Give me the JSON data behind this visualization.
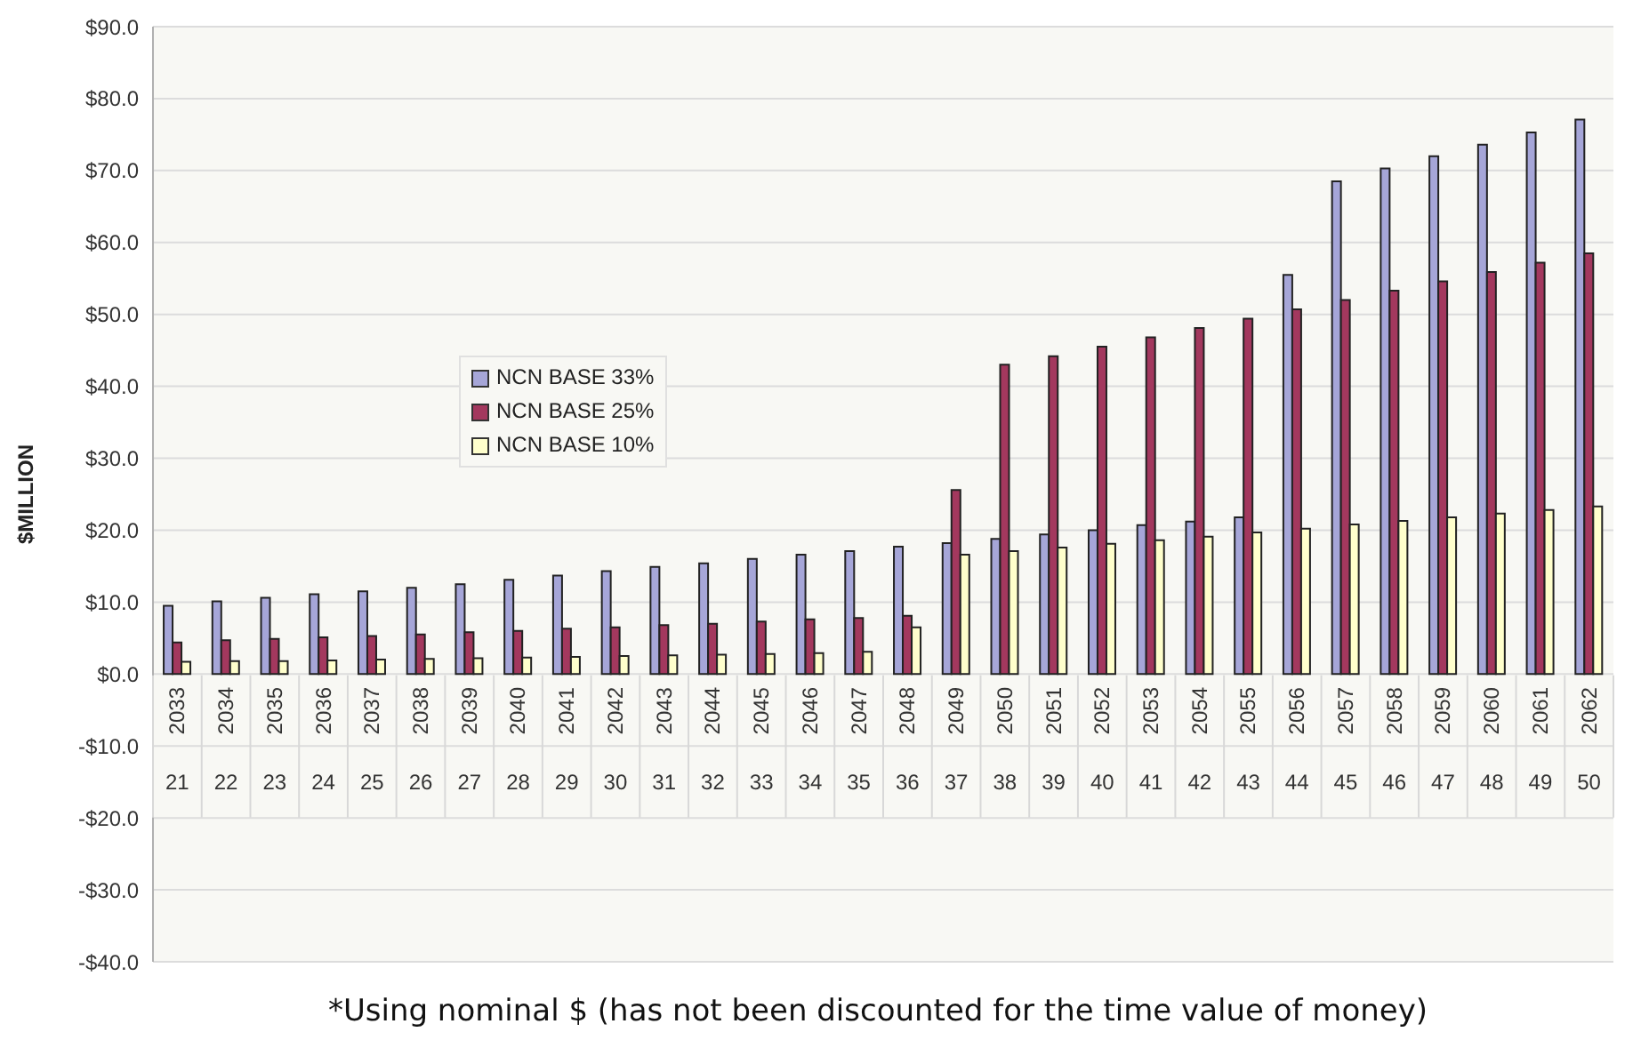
{
  "chart_data": {
    "type": "bar",
    "ylabel": "$MILLION",
    "categories": [
      "2033",
      "2034",
      "2035",
      "2036",
      "2037",
      "2038",
      "2039",
      "2040",
      "2041",
      "2042",
      "2043",
      "2044",
      "2045",
      "2046",
      "2047",
      "2048",
      "2049",
      "2050",
      "2051",
      "2052",
      "2053",
      "2054",
      "2055",
      "2056",
      "2057",
      "2058",
      "2059",
      "2060",
      "2061",
      "2062"
    ],
    "series": [
      {
        "name": "NCN BASE 33%",
        "color": "#a6a6d8",
        "values": [
          9.5,
          10.1,
          10.6,
          11.1,
          11.5,
          12.0,
          12.5,
          13.1,
          13.7,
          14.3,
          14.9,
          15.4,
          16.0,
          16.6,
          17.1,
          17.7,
          18.2,
          18.8,
          19.4,
          20.0,
          20.7,
          21.2,
          21.8,
          55.5,
          68.5,
          70.3,
          72.0,
          73.6,
          75.3,
          77.1
        ]
      },
      {
        "name": "NCN BASE 25%",
        "color": "#a3385e",
        "values": [
          4.4,
          4.7,
          4.9,
          5.1,
          5.3,
          5.5,
          5.8,
          6.0,
          6.3,
          6.5,
          6.8,
          7.0,
          7.3,
          7.6,
          7.8,
          8.1,
          25.6,
          43.0,
          44.2,
          45.5,
          46.8,
          48.1,
          49.4,
          50.7,
          52.0,
          53.3,
          54.6,
          55.9,
          57.2,
          58.5
        ]
      },
      {
        "name": "NCN BASE 10%",
        "color": "#ffffcc",
        "values": [
          1.7,
          1.8,
          1.8,
          1.9,
          2.0,
          2.1,
          2.2,
          2.3,
          2.4,
          2.5,
          2.6,
          2.7,
          2.8,
          2.9,
          3.1,
          6.5,
          16.6,
          17.1,
          17.6,
          18.1,
          18.6,
          19.1,
          19.7,
          20.2,
          20.8,
          21.3,
          21.8,
          22.3,
          22.8,
          23.3
        ]
      }
    ],
    "ylim": [
      -40,
      90
    ],
    "yticks": [
      {
        "value": -40,
        "label": "-$40.0"
      },
      {
        "value": -30,
        "label": "-$30.0"
      },
      {
        "value": -20,
        "label": "-$20.0"
      },
      {
        "value": -10,
        "label": "-$10.0"
      },
      {
        "value": 0,
        "label": "$0.0"
      },
      {
        "value": 10,
        "label": "$10.0"
      },
      {
        "value": 20,
        "label": "$20.0"
      },
      {
        "value": 30,
        "label": "$30.0"
      },
      {
        "value": 40,
        "label": "$40.0"
      },
      {
        "value": 50,
        "label": "$50.0"
      },
      {
        "value": 60,
        "label": "$60.0"
      },
      {
        "value": 70,
        "label": "$70.0"
      },
      {
        "value": 80,
        "label": "$80.0"
      },
      {
        "value": 90,
        "label": "$90.0"
      }
    ],
    "grid": "y",
    "legend": "left",
    "annotations": [
      "21",
      "22",
      "23",
      "24",
      "25",
      "26",
      "27",
      "28",
      "29",
      "30",
      "31",
      "32",
      "33",
      "34",
      "35",
      "36",
      "37",
      "38",
      "39",
      "40",
      "41",
      "42",
      "43",
      "44",
      "45",
      "46",
      "47",
      "48",
      "49",
      "50",
      "*Using nominal $ (has not been discounted for the time value of money)"
    ]
  }
}
